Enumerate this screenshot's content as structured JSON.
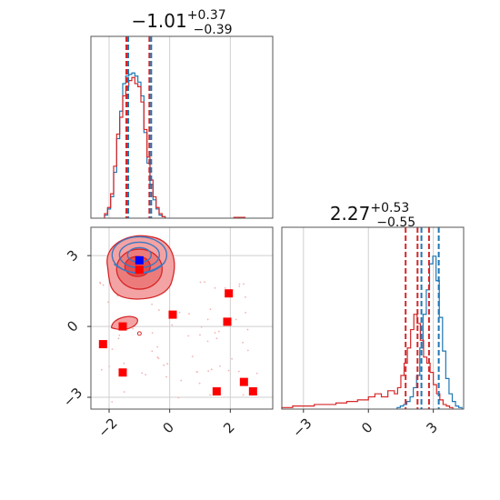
{
  "chart_data": {
    "type": "corner",
    "panels": [
      {
        "name": "marginal-param-1",
        "type": "histogram",
        "title": {
          "median": "−1.01",
          "plus": "+0.37",
          "minus": "−0.39"
        },
        "xlim": [
          -2.6,
          3.4
        ],
        "series": [
          {
            "name": "blue",
            "color": "#1f77b4",
            "bins_x": [
              -2.1,
              -2.0,
              -1.9,
              -1.8,
              -1.7,
              -1.6,
              -1.5,
              -1.4,
              -1.3,
              -1.2,
              -1.1,
              -1.0,
              -0.9,
              -0.8,
              -0.7,
              -0.6,
              -0.5,
              -0.4,
              -0.3,
              -0.2
            ],
            "counts": [
              2,
              6,
              14,
              30,
              52,
              70,
              88,
              93,
              94,
              95,
              93,
              89,
              80,
              56,
              36,
              22,
              12,
              6,
              2,
              1
            ],
            "quantiles": [
              -1.4,
              -0.64
            ]
          },
          {
            "name": "red",
            "color": "#d62728",
            "bins_x": [
              -2.1,
              -2.0,
              -1.9,
              -1.8,
              -1.7,
              -1.6,
              -1.5,
              -1.4,
              -1.3,
              -1.2,
              -1.1,
              -1.0,
              -0.9,
              -0.8,
              -0.7,
              -0.6,
              -0.5,
              -0.4,
              -0.3,
              -0.2
            ],
            "counts": [
              3,
              7,
              16,
              34,
              55,
              66,
              80,
              86,
              90,
              92,
              88,
              86,
              76,
              58,
              40,
              25,
              14,
              7,
              3,
              1
            ],
            "quantiles": [
              -1.4,
              -0.64
            ]
          }
        ]
      },
      {
        "name": "joint-2d",
        "type": "scatter-contour",
        "xlim": [
          -2.6,
          3.4
        ],
        "ylim": [
          -3.5,
          4.2
        ],
        "xticks": [
          "−2",
          "0",
          "2"
        ],
        "xtick_values": [
          -2,
          0,
          2
        ],
        "yticks": [
          "−3",
          "0",
          "3"
        ],
        "ytick_values": [
          -3,
          0,
          3
        ],
        "red_markers": [
          {
            "x": -1.0,
            "y": 2.4
          },
          {
            "x": 0.1,
            "y": 0.5
          },
          {
            "x": -1.55,
            "y": 0.0
          },
          {
            "x": -2.2,
            "y": -0.75
          },
          {
            "x": -1.55,
            "y": -1.95
          },
          {
            "x": 1.95,
            "y": 1.4
          },
          {
            "x": 1.9,
            "y": 0.2
          },
          {
            "x": 1.55,
            "y": -2.75
          },
          {
            "x": 2.45,
            "y": -2.35
          },
          {
            "x": 2.75,
            "y": -2.75
          }
        ],
        "blue_markers": [
          {
            "x": -1.0,
            "y": 2.8
          }
        ],
        "red_contour_center": {
          "x": -1.0,
          "y": 2.35
        },
        "blue_contour_center": {
          "x": -1.0,
          "y": 2.95
        }
      },
      {
        "name": "marginal-param-2",
        "type": "histogram",
        "title": {
          "median": "2.27",
          "plus": "+0.53",
          "minus": "−0.55"
        },
        "xlim": [
          -4.0,
          4.4
        ],
        "xticks": [
          "−3",
          "0",
          "3"
        ],
        "xtick_values": [
          -3,
          0,
          3
        ],
        "series": [
          {
            "name": "blue",
            "color": "#1f77b4",
            "bins_x": [
              1.4,
              1.55,
              1.7,
              1.85,
              2.0,
              2.15,
              2.3,
              2.45,
              2.6,
              2.75,
              2.9,
              3.05,
              3.2,
              3.35,
              3.5,
              3.65,
              3.8,
              3.95,
              4.1,
              4.25
            ],
            "counts": [
              1,
              2,
              3,
              5,
              8,
              14,
              22,
              40,
              62,
              78,
              95,
              100,
              84,
              60,
              38,
              20,
              10,
              5,
              2,
              1
            ],
            "quantiles": [
              2.45,
              3.25
            ]
          },
          {
            "name": "red",
            "color": "#d62728",
            "hist": [
              [
                -4.0,
                1
              ],
              [
                -3.5,
                2
              ],
              [
                -3.0,
                2
              ],
              [
                -2.5,
                3
              ],
              [
                -2.0,
                3
              ],
              [
                -1.5,
                4
              ],
              [
                -1.0,
                5
              ],
              [
                -0.5,
                6
              ],
              [
                0.0,
                8
              ],
              [
                0.3,
                10
              ],
              [
                0.6,
                8
              ],
              [
                0.9,
                12
              ],
              [
                1.2,
                10
              ],
              [
                1.35,
                14
              ],
              [
                1.5,
                22
              ],
              [
                1.65,
                30
              ],
              [
                1.8,
                40
              ],
              [
                1.95,
                52
              ],
              [
                2.1,
                62
              ],
              [
                2.25,
                56
              ],
              [
                2.4,
                45
              ],
              [
                2.55,
                34
              ],
              [
                2.7,
                30
              ],
              [
                2.85,
                24
              ],
              [
                3.0,
                16
              ],
              [
                3.15,
                10
              ],
              [
                3.3,
                6
              ],
              [
                3.45,
                3
              ],
              [
                3.6,
                2
              ],
              [
                3.75,
                1
              ]
            ],
            "quantiles": [
              1.72,
              2.27,
              2.8
            ]
          }
        ]
      }
    ],
    "grid": true
  }
}
